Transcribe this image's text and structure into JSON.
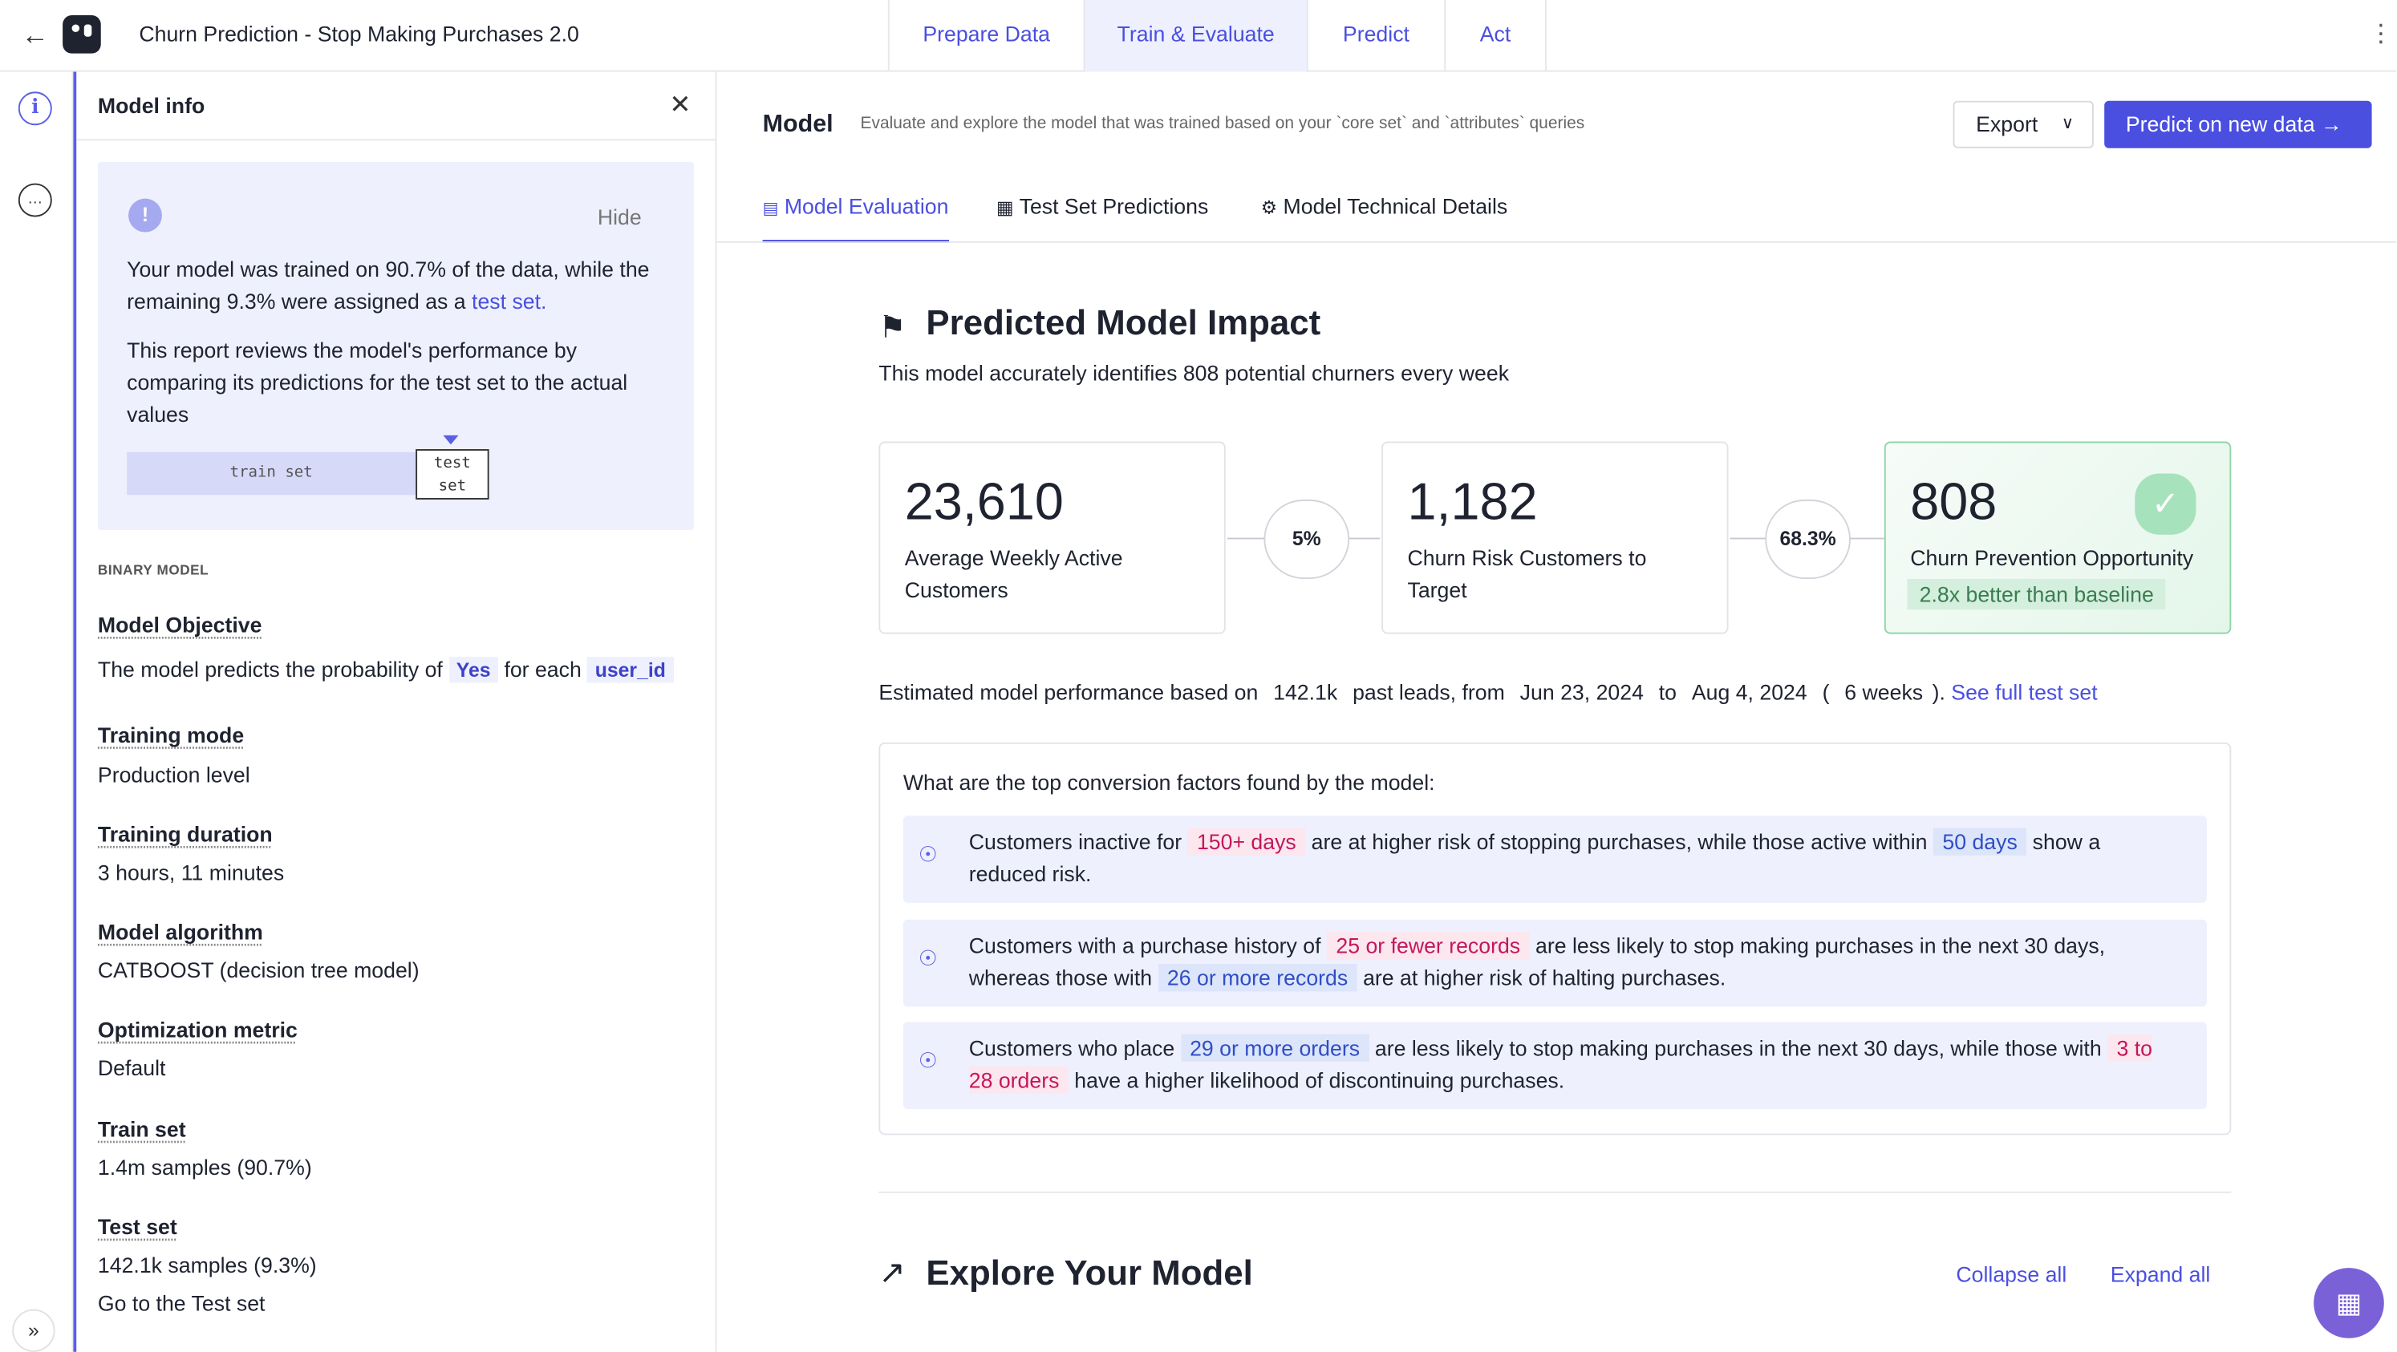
{
  "app": {
    "title": "Churn Prediction - Stop Making Purchases 2.0",
    "nav_tabs": [
      "Prepare Data",
      "Train & Evaluate",
      "Predict",
      "Act"
    ]
  },
  "panel": {
    "title": "Model info",
    "hide_label": "Hide",
    "info_p1_pre": "Your model was trained on 90.7% of the data, while the remaining 9.3% were assigned as a ",
    "info_p1_link": "test set.",
    "info_p2": "This report reviews the model's performance by comparing its predictions for the test set to the actual values",
    "train_set_label": "train set",
    "test_set_label": "test set",
    "section_label": "BINARY MODEL",
    "objective_label": "Model Objective",
    "objective_pre": "The model predicts the probability of",
    "objective_value": "Yes",
    "objective_mid": "for each",
    "objective_entity": "user_id",
    "training_mode_label": "Training mode",
    "training_mode": "Production level",
    "training_duration_label": "Training duration",
    "training_duration": "3 hours, 11 minutes",
    "algorithm_label": "Model algorithm",
    "algorithm": "CATBOOST (decision tree model)",
    "metric_label": "Optimization metric",
    "metric": "Default",
    "train_set_title": "Train set",
    "train_set": "1.4m samples (90.7%)",
    "test_set_title": "Test set",
    "test_set": "142.1k samples (9.3%)",
    "test_set_link": "Go to the Test set"
  },
  "main": {
    "title": "Model",
    "subtitle": "Evaluate and explore the model that was trained based on your `core set` and `attributes` queries",
    "export_label": "Export",
    "predict_label": "Predict on new data",
    "tabs": [
      "Model Evaluation",
      "Test Set Predictions",
      "Model Technical Details"
    ],
    "impact_title": "Predicted Model Impact",
    "impact_sub": "This model accurately identifies 808 potential churners every week",
    "cards": [
      {
        "value": "23,610",
        "label": "Average Weekly Active Customers"
      },
      {
        "value": "1,182",
        "label": "Churn Risk Customers to Target"
      },
      {
        "value": "808",
        "label": "Churn Prevention Opportunity",
        "badge": "2.8x better than baseline"
      }
    ],
    "rates": [
      "5%",
      "68.3%"
    ],
    "estimate": {
      "pre": "Estimated model performance based on",
      "leads": "142.1k",
      "mid": "past leads, from",
      "from": "Jun 23, 2024",
      "to_word": "to",
      "to": "Aug 4, 2024",
      "weeks_open": "(",
      "weeks": "6 weeks",
      "weeks_close": ").",
      "link": "See full test set"
    },
    "factors_title": "What are the top conversion factors found by the model:",
    "factors": [
      {
        "t1": "Customers inactive for",
        "h1": "150+ days",
        "t2": "are at higher risk of stopping purchases, while those active within",
        "h2": "50 days",
        "t3": "show a reduced risk."
      },
      {
        "t1": "Customers with a purchase history of",
        "h1": "25 or fewer records",
        "t2": "are less likely to stop making purchases in the next 30 days, whereas those with",
        "h2": "26 or more records",
        "t3": "are at higher risk of halting purchases."
      },
      {
        "t1": "Customers who place",
        "h1": "29 or more orders",
        "t2": "are less likely to stop making purchases in the next 30 days, while those with",
        "h2": "3 to 28 orders",
        "t3": "have a higher likelihood of discontinuing purchases."
      }
    ],
    "explore_title": "Explore Your Model",
    "collapse_label": "Collapse all",
    "expand_label": "Expand all"
  },
  "icons": [
    "back-arrow-icon",
    "logo-icon",
    "kebab-icon",
    "info-icon",
    "chat-icon",
    "expand-rail-icon",
    "close-icon",
    "exclamation-icon",
    "flag-icon",
    "check-icon",
    "bulb-icon",
    "trend-icon",
    "chat-fab-icon"
  ],
  "colors": {
    "accent": "#4a4fe0",
    "success": "#3b7d52",
    "pink": "#c2185b",
    "blue": "#2f4ec4"
  }
}
